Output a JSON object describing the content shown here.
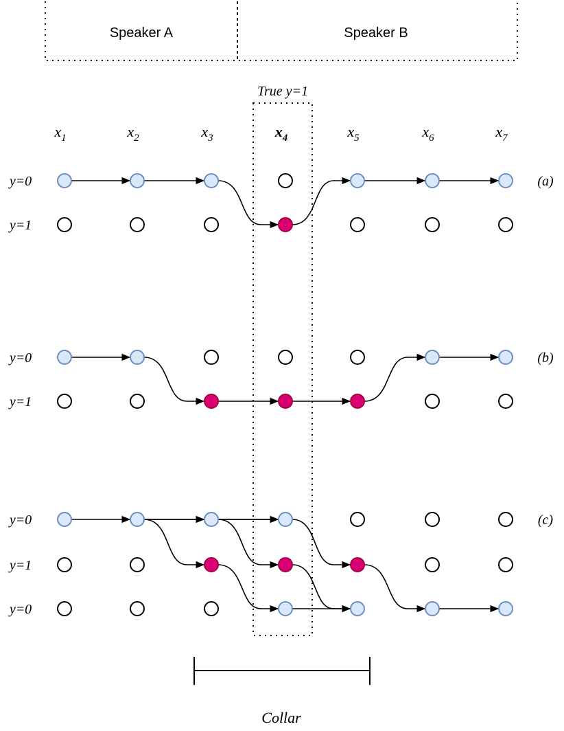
{
  "header": {
    "speaker_a": "Speaker A",
    "speaker_b": "Speaker B"
  },
  "true_label": "True y=1",
  "columns": [
    {
      "var": "x",
      "sub": "1",
      "bold": false
    },
    {
      "var": "x",
      "sub": "2",
      "bold": false
    },
    {
      "var": "x",
      "sub": "3",
      "bold": false
    },
    {
      "var": "x",
      "sub": "4",
      "bold": true
    },
    {
      "var": "x",
      "sub": "5",
      "bold": false
    },
    {
      "var": "x",
      "sub": "6",
      "bold": false
    },
    {
      "var": "x",
      "sub": "7",
      "bold": false
    }
  ],
  "panels": [
    {
      "id": "a",
      "tag": "(a)",
      "row_labels": [
        "y=0",
        "y=1"
      ],
      "nodes": [
        [
          "b",
          "b",
          "b",
          "o",
          "b",
          "b",
          "b"
        ],
        [
          "o",
          "o",
          "o",
          "p",
          "o",
          "o",
          "o"
        ]
      ],
      "paths": [
        [
          [
            0,
            0
          ],
          [
            1,
            0
          ],
          [
            2,
            0
          ],
          [
            3,
            1
          ],
          [
            4,
            0
          ],
          [
            5,
            0
          ],
          [
            6,
            0
          ]
        ]
      ]
    },
    {
      "id": "b",
      "tag": "(b)",
      "row_labels": [
        "y=0",
        "y=1"
      ],
      "nodes": [
        [
          "b",
          "b",
          "o",
          "o",
          "o",
          "b",
          "b"
        ],
        [
          "o",
          "o",
          "p",
          "p",
          "p",
          "o",
          "o"
        ]
      ],
      "paths": [
        [
          [
            0,
            0
          ],
          [
            1,
            0
          ],
          [
            2,
            1
          ],
          [
            3,
            1
          ],
          [
            4,
            1
          ],
          [
            5,
            0
          ],
          [
            6,
            0
          ]
        ]
      ]
    },
    {
      "id": "c",
      "tag": "(c)",
      "row_labels": [
        "y=0",
        "y=1",
        "y=0"
      ],
      "nodes": [
        [
          "b",
          "b",
          "b",
          "b",
          "o",
          "o",
          "o"
        ],
        [
          "o",
          "o",
          "p",
          "p",
          "p",
          "o",
          "o"
        ],
        [
          "o",
          "o",
          "o",
          "b",
          "b",
          "b",
          "b"
        ]
      ],
      "paths": [
        [
          [
            0,
            0
          ],
          [
            1,
            0
          ],
          [
            2,
            0
          ],
          [
            3,
            0
          ],
          [
            4,
            1
          ],
          [
            5,
            2
          ],
          [
            6,
            2
          ]
        ],
        [
          [
            1,
            0
          ],
          [
            2,
            1
          ],
          [
            3,
            2
          ],
          [
            4,
            2
          ]
        ],
        [
          [
            2,
            0
          ],
          [
            3,
            1
          ],
          [
            4,
            2
          ]
        ],
        [
          [
            1,
            0
          ],
          [
            2,
            0
          ]
        ],
        [
          [
            2,
            0
          ],
          [
            3,
            0
          ]
        ]
      ]
    }
  ],
  "collar_label": "Collar",
  "colors": {
    "blue_fill": "#dae8fc",
    "blue_stroke": "#6c8ebf",
    "pink_fill": "#d80073",
    "pink_stroke": "#a50040",
    "ink": "#000000"
  }
}
